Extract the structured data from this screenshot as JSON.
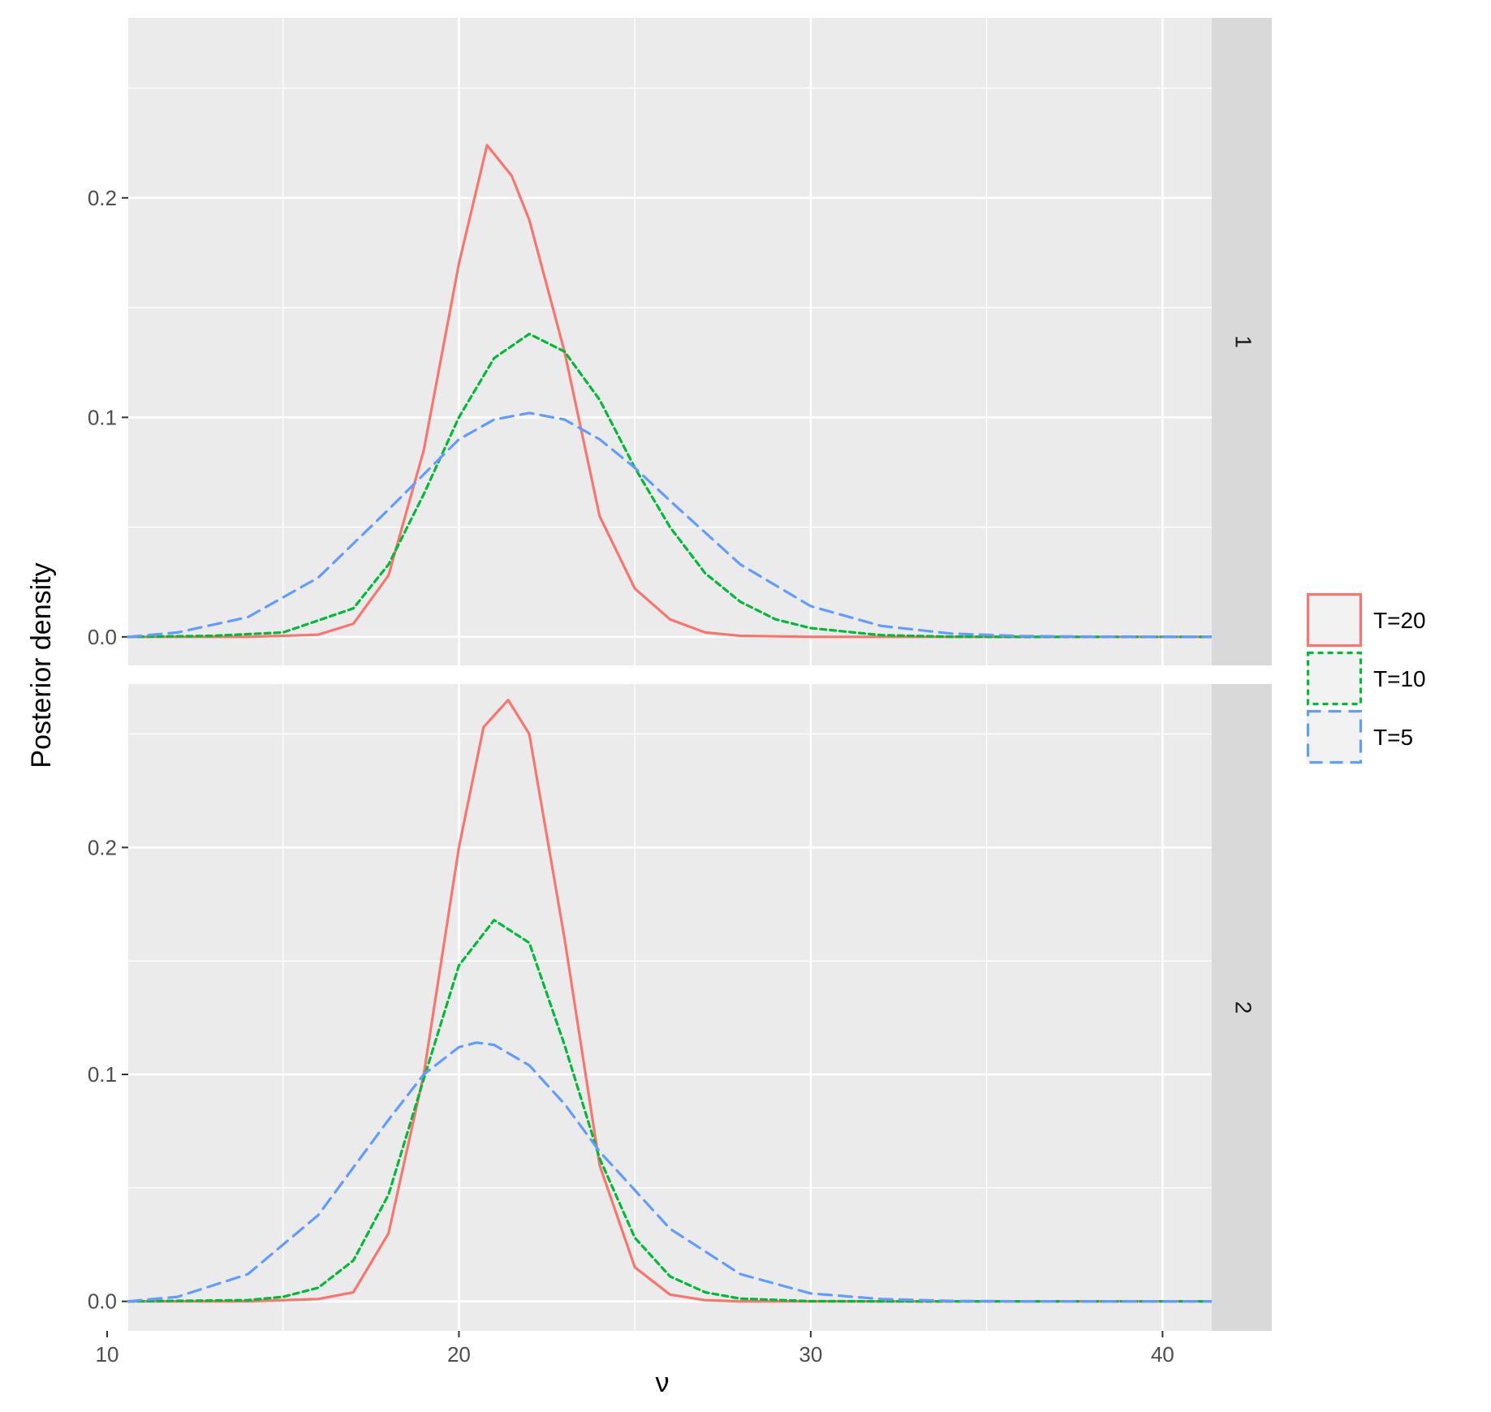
{
  "chart_data": {
    "type": "line",
    "xlabel": "ν",
    "ylabel": "Posterior density",
    "xlim": [
      10.6,
      41.4
    ],
    "x_ticks": [
      "10",
      "20",
      "30",
      "40"
    ],
    "x_tick_values": [
      10,
      20,
      30,
      40
    ],
    "y_ticks": [
      "0.0",
      "0.1",
      "0.2"
    ],
    "y_tick_values": [
      0.0,
      0.1,
      0.2
    ],
    "grid": true,
    "legend_position": "right",
    "legend": [
      {
        "name": "T=20",
        "color": "#F8766D",
        "dash": "solid"
      },
      {
        "name": "T=10",
        "color": "#00BA38",
        "dash": "dotted"
      },
      {
        "name": "T=5",
        "color": "#619CFF",
        "dash": "dashed"
      }
    ],
    "panels": [
      {
        "strip": "1",
        "ylim": [
          -0.013,
          0.282
        ],
        "series": [
          {
            "name": "T=20",
            "x": [
              10.6,
              14,
              16,
              17,
              18,
              19,
              20,
              20.8,
              21.5,
              22,
              23,
              24,
              25,
              26,
              27,
              28,
              30,
              41.4
            ],
            "y": [
              0,
              0,
              0.001,
              0.006,
              0.028,
              0.085,
              0.17,
              0.224,
              0.21,
              0.19,
              0.13,
              0.055,
              0.022,
              0.008,
              0.002,
              0.0005,
              0,
              0
            ]
          },
          {
            "name": "T=10",
            "x": [
              10.6,
              13,
              15,
              17,
              18,
              19,
              20,
              21,
              22,
              23,
              24,
              25,
              26,
              27,
              28,
              29,
              30,
              32,
              34,
              36,
              41.4
            ],
            "y": [
              0,
              0.0005,
              0.002,
              0.013,
              0.033,
              0.065,
              0.1,
              0.127,
              0.138,
              0.13,
              0.108,
              0.077,
              0.05,
              0.029,
              0.016,
              0.008,
              0.004,
              0.0008,
              0.0001,
              0,
              0
            ]
          },
          {
            "name": "T=5",
            "x": [
              10.6,
              12,
              14,
              16,
              18,
              20,
              21,
              22,
              23,
              24,
              25,
              26,
              28,
              30,
              32,
              34,
              36,
              38,
              41.4
            ],
            "y": [
              0,
              0.002,
              0.009,
              0.027,
              0.058,
              0.09,
              0.099,
              0.102,
              0.099,
              0.09,
              0.077,
              0.062,
              0.033,
              0.014,
              0.005,
              0.0015,
              0.0004,
              0.0001,
              0
            ]
          }
        ]
      },
      {
        "strip": "2",
        "ylim": [
          -0.013,
          0.272
        ],
        "series": [
          {
            "name": "T=20",
            "x": [
              10.6,
              14,
              16,
              17,
              18,
              19,
              20,
              20.7,
              21.4,
              22,
              23,
              24,
              25,
              26,
              27,
              28,
              41.4
            ],
            "y": [
              0,
              0,
              0.001,
              0.004,
              0.03,
              0.1,
              0.2,
              0.253,
              0.265,
              0.25,
              0.16,
              0.06,
              0.015,
              0.003,
              0.0005,
              0,
              0
            ]
          },
          {
            "name": "T=10",
            "x": [
              10.6,
              14,
              15,
              16,
              17,
              18,
              19,
              20,
              21,
              22,
              23,
              24,
              25,
              26,
              27,
              28,
              30,
              32,
              41.4
            ],
            "y": [
              0,
              0.0005,
              0.002,
              0.006,
              0.018,
              0.047,
              0.098,
              0.148,
              0.168,
              0.158,
              0.113,
              0.063,
              0.028,
              0.011,
              0.004,
              0.0012,
              0.0001,
              0,
              0
            ]
          },
          {
            "name": "T=5",
            "x": [
              10.6,
              12,
              14,
              16,
              18,
              19,
              20,
              20.5,
              21,
              22,
              23,
              24,
              26,
              28,
              30,
              32,
              34,
              36,
              41.4
            ],
            "y": [
              0,
              0.002,
              0.012,
              0.038,
              0.08,
              0.1,
              0.112,
              0.114,
              0.113,
              0.104,
              0.087,
              0.066,
              0.032,
              0.012,
              0.0035,
              0.001,
              0.0002,
              0,
              0
            ]
          }
        ]
      }
    ]
  }
}
